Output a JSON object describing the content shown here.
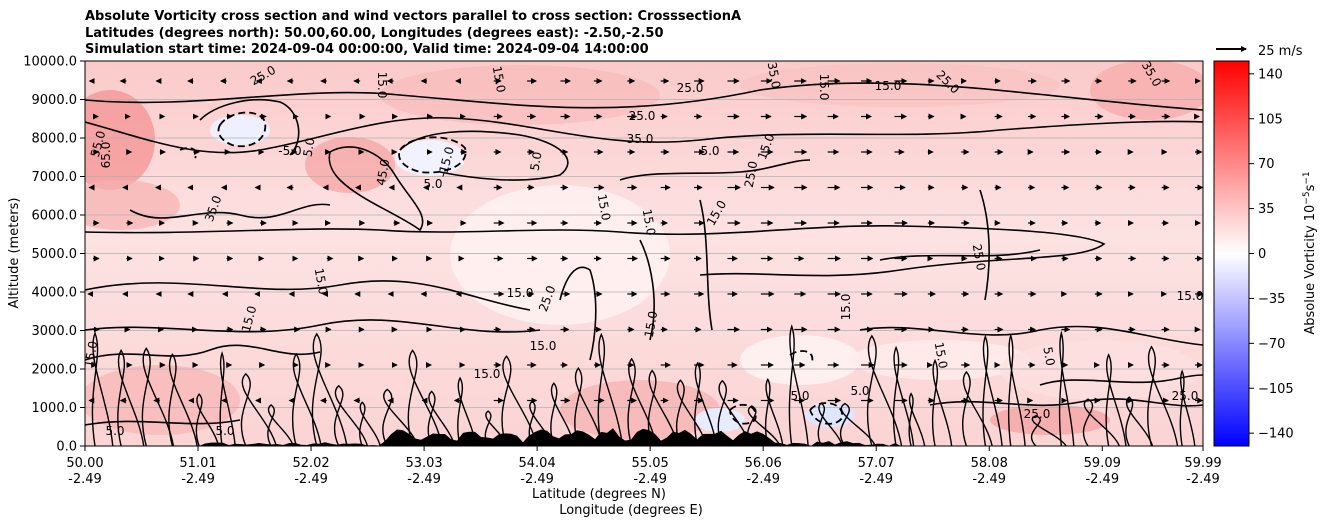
{
  "title_lines": [
    "Absolute Vorticity cross section and wind vectors parallel to cross section: CrosssectionA",
    "Latitudes (degrees north): 50.00,60.00, Longitudes (degrees east): -2.50,-2.50",
    "Simulation start time: 2024-09-04 00:00:00, Valid time: 2024-09-04 14:00:00"
  ],
  "chart_data": {
    "type": "heatmap",
    "ylabel": "Altitude (meters)",
    "xlabel_lines": [
      "Latitude (degrees N)",
      "Longitude (degrees E)"
    ],
    "ylim": [
      0,
      10000
    ],
    "y_ticks": [
      "0.0",
      "1000.0",
      "2000.0",
      "3000.0",
      "4000.0",
      "5000.0",
      "6000.0",
      "7000.0",
      "8000.0",
      "9000.0",
      "10000.0"
    ],
    "x_ticks": [
      {
        "lat": "50.00",
        "lon": "-2.49"
      },
      {
        "lat": "51.01",
        "lon": "-2.49"
      },
      {
        "lat": "52.02",
        "lon": "-2.49"
      },
      {
        "lat": "53.03",
        "lon": "-2.49"
      },
      {
        "lat": "54.04",
        "lon": "-2.49"
      },
      {
        "lat": "55.05",
        "lon": "-2.49"
      },
      {
        "lat": "56.06",
        "lon": "-2.49"
      },
      {
        "lat": "57.07",
        "lon": "-2.49"
      },
      {
        "lat": "58.08",
        "lon": "-2.49"
      },
      {
        "lat": "59.09",
        "lon": "-2.49"
      },
      {
        "lat": "59.99",
        "lon": "-2.49"
      }
    ],
    "grid": "horizontal",
    "colorbar": {
      "label": "Absolue Vorticity 10$^{-5}$s$^{-1}$",
      "label_main": "Absolue Vorticity 10",
      "label_exp1": "−5",
      "label_mid": "s",
      "label_exp2": "−1",
      "range": [
        -150,
        150
      ],
      "ticks": [
        "−140",
        "−105",
        "−70",
        "−35",
        "0",
        "35",
        "70",
        "105",
        "140"
      ],
      "colors": {
        "low": "#0000ff",
        "mid": "#ffffff",
        "high": "#ff0000"
      }
    },
    "quiver_key": "25 m/s",
    "contour_labels": [
      "5.0",
      "15.0",
      "25.0",
      "35.0",
      "45.0",
      "55.0",
      "65.0",
      "-5.0",
      "-15.0"
    ]
  }
}
